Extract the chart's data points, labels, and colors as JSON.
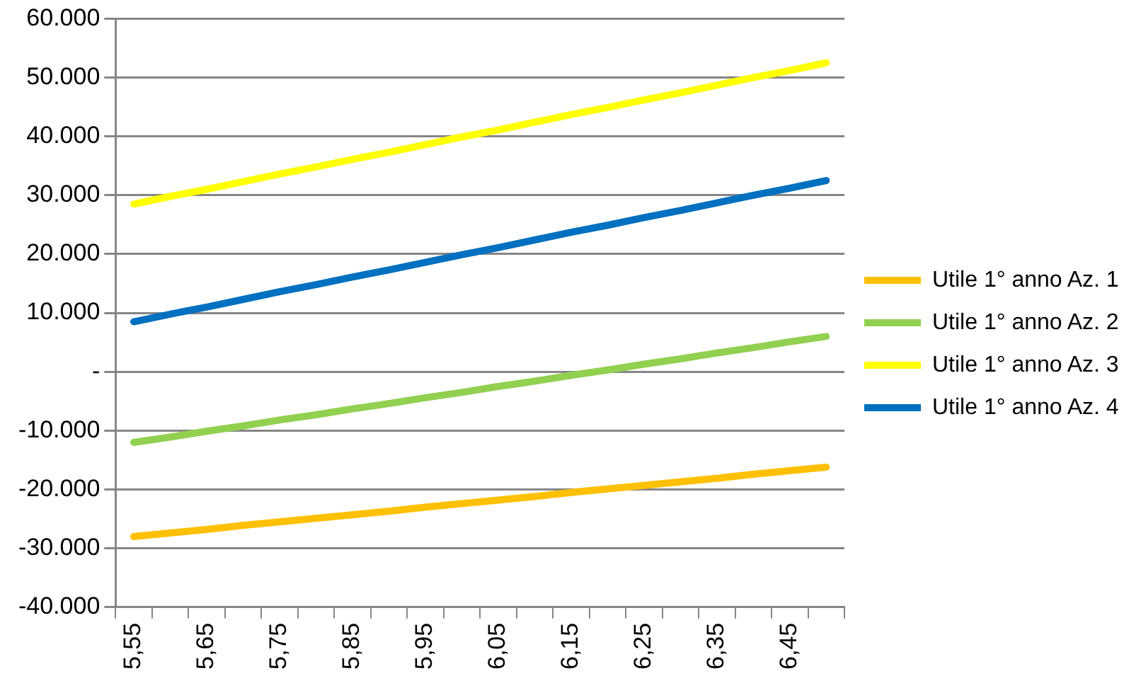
{
  "chart_data": {
    "type": "line",
    "categories": [
      "5,55",
      null,
      "5,65",
      null,
      "5,75",
      null,
      "5,85",
      null,
      "5,95",
      null,
      "6,05",
      null,
      "6,15",
      null,
      "6,25",
      null,
      "6,35",
      null,
      "6,45",
      null
    ],
    "series": [
      {
        "name": "Utile 1° anno Az. 1",
        "color": "#ffc000",
        "values": [
          -28000,
          -27400,
          -26800,
          -26100,
          -25500,
          -24900,
          -24300,
          -23700,
          -23000,
          -22400,
          -21800,
          -21200,
          -20500,
          -19900,
          -19300,
          -18700,
          -18100,
          -17400,
          -16800,
          -16200
        ]
      },
      {
        "name": "Utile 1° anno Az. 2",
        "color": "#92d050",
        "values": [
          -12000,
          -11100,
          -10100,
          -9200,
          -8200,
          -7300,
          -6300,
          -5400,
          -4400,
          -3500,
          -2500,
          -1600,
          -600,
          300,
          1300,
          2200,
          3200,
          4100,
          5100,
          6000
        ]
      },
      {
        "name": "Utile 1° anno Az. 3",
        "color": "#ffff00",
        "values": [
          28500,
          29800,
          31000,
          32300,
          33600,
          34800,
          36100,
          37300,
          38600,
          39900,
          41100,
          42400,
          43700,
          44900,
          46200,
          47400,
          48700,
          50000,
          51200,
          52500
        ]
      },
      {
        "name": "Utile 1° anno Az. 4",
        "color": "#0070c0",
        "values": [
          8500,
          9800,
          11000,
          12300,
          13600,
          14800,
          16100,
          17300,
          18600,
          19900,
          21100,
          22400,
          23700,
          24900,
          26200,
          27400,
          28700,
          30000,
          31200,
          32500
        ]
      }
    ],
    "ylim": [
      -40000,
      60000
    ],
    "yticks": [
      {
        "value": -40000,
        "label": "-40.000"
      },
      {
        "value": -30000,
        "label": "-30.000"
      },
      {
        "value": -20000,
        "label": "-20.000"
      },
      {
        "value": -10000,
        "label": "-10.000"
      },
      {
        "value": 0,
        "label": "-"
      },
      {
        "value": 10000,
        "label": "10.000"
      },
      {
        "value": 20000,
        "label": "20.000"
      },
      {
        "value": 30000,
        "label": "30.000"
      },
      {
        "value": 40000,
        "label": "40.000"
      },
      {
        "value": 50000,
        "label": "50.000"
      },
      {
        "value": 60000,
        "label": "60.000"
      }
    ],
    "grid": "y",
    "legend": "right",
    "marker": "none",
    "line_style": "solid"
  }
}
